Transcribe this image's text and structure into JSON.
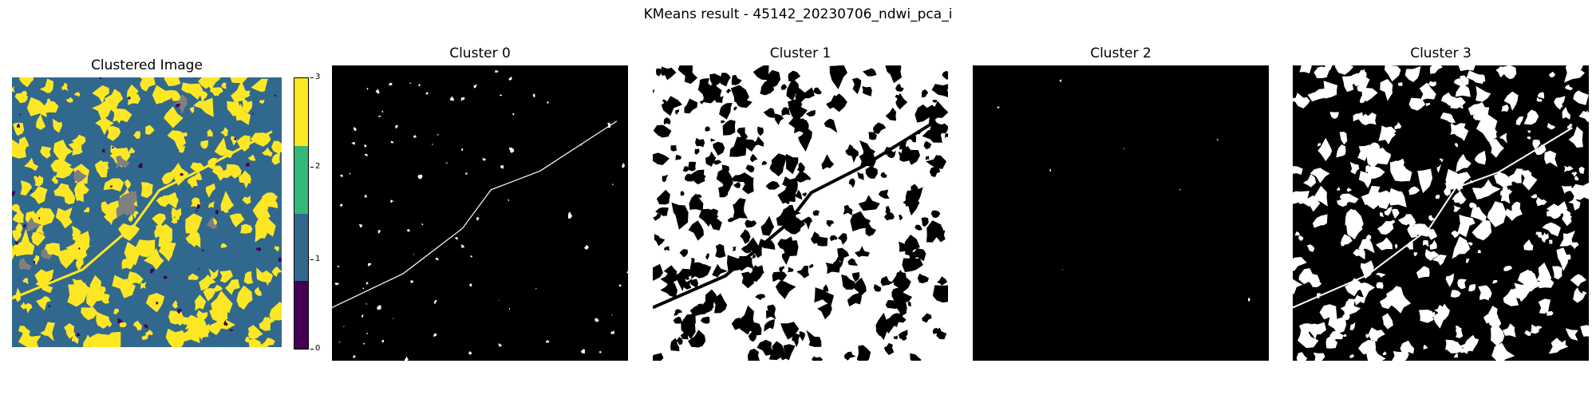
{
  "figure": {
    "suptitle": "KMeans result - 45142_20230706_ndwi_pca_i"
  },
  "panels": [
    {
      "title": "Clustered Image"
    },
    {
      "title": "Cluster 0"
    },
    {
      "title": "Cluster 1"
    },
    {
      "title": "Cluster 2"
    },
    {
      "title": "Cluster 3"
    }
  ],
  "colorbar": {
    "ticks": [
      "0",
      "1",
      "2",
      "3"
    ],
    "colors": [
      "#440154",
      "#31688e",
      "#35b779",
      "#fde725"
    ]
  },
  "colors": {
    "nodata": "#808080",
    "mask_on": "#ffffff",
    "mask_off": "#000000"
  }
}
